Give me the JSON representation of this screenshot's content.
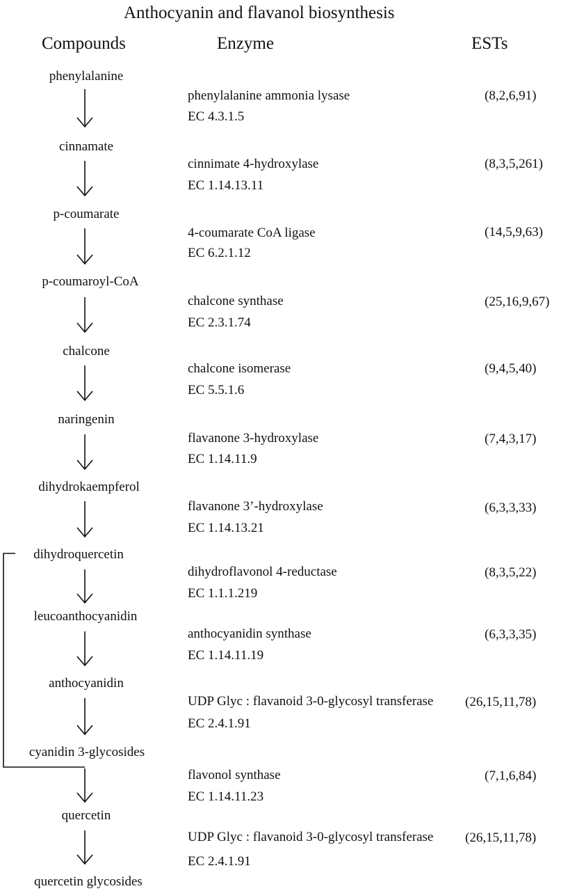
{
  "title": "Anthocyanin and flavanol biosynthesis",
  "headers": {
    "compounds": "Compounds",
    "enzyme": "Enzyme",
    "ests": "ESTs"
  },
  "compounds": [
    "phenylalanine",
    "cinnamate",
    "p-coumarate",
    "p-coumaroyl-CoA",
    "chalcone",
    "naringenin",
    "dihydrokaempferol",
    "dihydroquercetin",
    "leucoanthocyanidin",
    "anthocyanidin",
    "cyanidin 3-glycosides",
    "quercetin",
    "quercetin glycosides"
  ],
  "steps": [
    {
      "enzyme": "phenylalanine ammonia lysase",
      "ec": "EC 4.3.1.5",
      "ests": "(8,2,6,91)"
    },
    {
      "enzyme": "cinnimate 4-hydroxylase",
      "ec": "EC 1.14.13.11",
      "ests": "(8,3,5,261)"
    },
    {
      "enzyme": "4-coumarate CoA ligase",
      "ec": "EC 6.2.1.12",
      "ests": "(14,5,9,63)"
    },
    {
      "enzyme": "chalcone synthase",
      "ec": "EC 2.3.1.74",
      "ests": "(25,16,9,67)"
    },
    {
      "enzyme": "chalcone isomerase",
      "ec": "EC 5.5.1.6",
      "ests": "(9,4,5,40)"
    },
    {
      "enzyme": "flavanone 3-hydroxylase",
      "ec": "EC 1.14.11.9",
      "ests": "(7,4,3,17)"
    },
    {
      "enzyme": "flavanone 3’-hydroxylase",
      "ec": "EC 1.14.13.21",
      "ests": "(6,3,3,33)"
    },
    {
      "enzyme": "dihydroflavonol 4-reductase",
      "ec": "EC 1.1.1.219",
      "ests": "(8,3,5,22)"
    },
    {
      "enzyme": "anthocyanidin synthase",
      "ec": "EC 1.14.11.19",
      "ests": "(6,3,3,35)"
    },
    {
      "enzyme": "UDP Glyc : flavanoid 3-0-glycosyl transferase",
      "ec": "EC 2.4.1.91",
      "ests": "(26,15,11,78)"
    },
    {
      "enzyme": "flavonol synthase",
      "ec": "EC 1.14.11.23",
      "ests": "(7,1,6,84)"
    },
    {
      "enzyme": "UDP Glyc : flavanoid 3-0-glycosyl transferase",
      "ec": "EC 2.4.1.91",
      "ests": "(26,15,11,78)"
    }
  ]
}
